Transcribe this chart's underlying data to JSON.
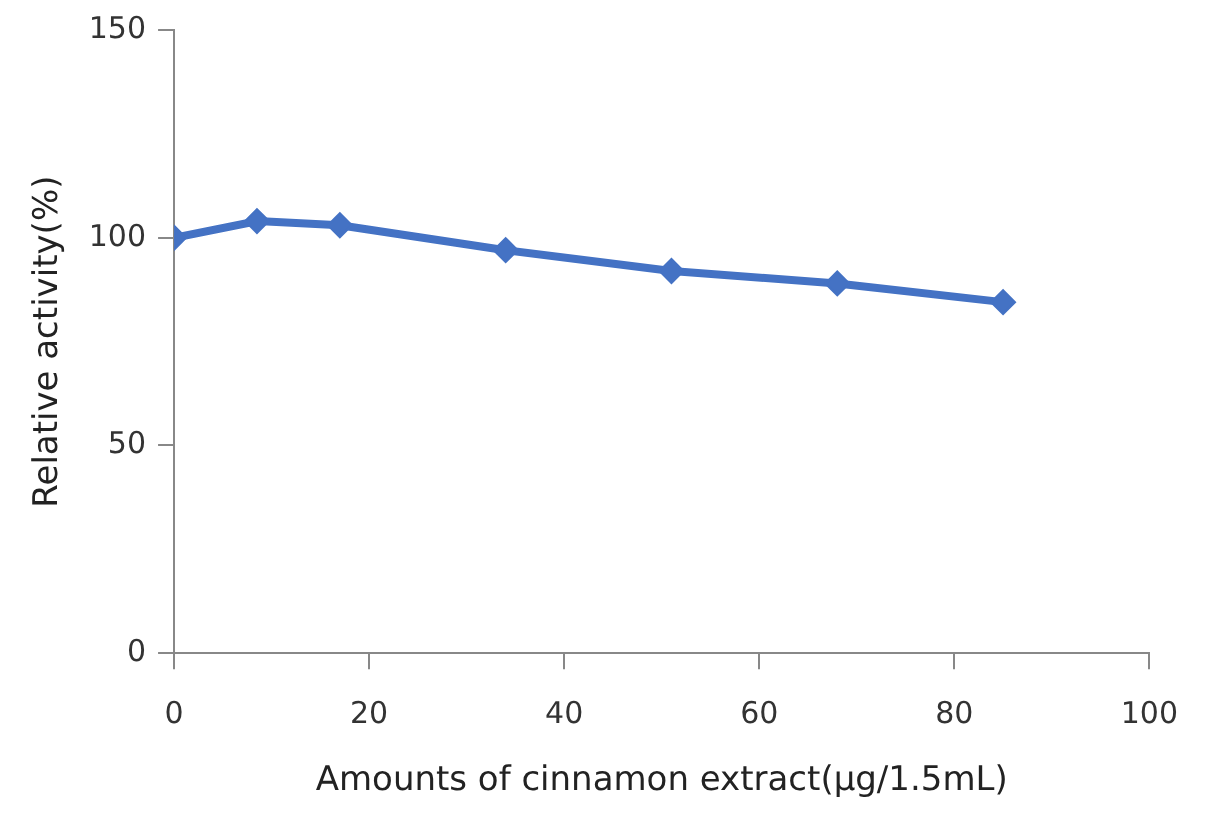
{
  "chart_data": {
    "type": "line",
    "xlabel": "Amounts of cinnamon extract(μg/1.5mL)",
    "ylabel": "Relative activity(%)",
    "x": [
      0,
      8.5,
      17,
      34,
      51,
      68,
      85
    ],
    "series": [
      {
        "color": "#4472c4",
        "values": [
          100,
          104,
          103,
          97,
          92,
          89,
          84.5
        ]
      }
    ],
    "xlim": [
      0,
      100
    ],
    "xticks": [
      0,
      20,
      40,
      60,
      80,
      100
    ],
    "ylim": [
      0,
      150
    ],
    "yticks": [
      0,
      50,
      100,
      150
    ],
    "grid": false,
    "legend": false,
    "marker": "diamond",
    "line_style": "solid"
  }
}
